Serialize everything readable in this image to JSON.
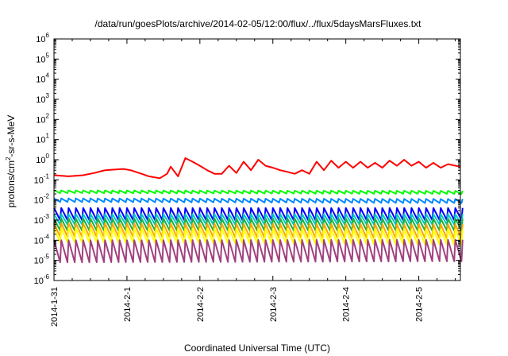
{
  "chart_data": {
    "type": "line",
    "title": "/data/run/goesPlots/archive/2014-02-05/12:00/flux/../flux/5daysMarsFluxes.txt",
    "xlabel": "Coordinated Universal Time (UTC)",
    "ylabel_parts": {
      "base": "protons/cm",
      "sup": "2",
      "rest": "-sr-s-MeV"
    },
    "y_scale": "log",
    "ylim": [
      1e-06,
      1000000.0
    ],
    "y_ticks": [
      {
        "value": 1e-06,
        "base": "10",
        "exp": "-6"
      },
      {
        "value": 1e-05,
        "base": "10",
        "exp": "-5"
      },
      {
        "value": 0.0001,
        "base": "10",
        "exp": "-4"
      },
      {
        "value": 0.001,
        "base": "10",
        "exp": "-3"
      },
      {
        "value": 0.01,
        "base": "10",
        "exp": "-2"
      },
      {
        "value": 0.1,
        "base": "10",
        "exp": "-1"
      },
      {
        "value": 1,
        "base": "10",
        "exp": "0"
      },
      {
        "value": 10.0,
        "base": "10",
        "exp": "1"
      },
      {
        "value": 100.0,
        "base": "10",
        "exp": "2"
      },
      {
        "value": 1000.0,
        "base": "10",
        "exp": "3"
      },
      {
        "value": 10000.0,
        "base": "10",
        "exp": "4"
      },
      {
        "value": 100000.0,
        "base": "10",
        "exp": "5"
      },
      {
        "value": 1000000.0,
        "base": "10",
        "exp": "6"
      }
    ],
    "x_unit": "days",
    "xlim": [
      0,
      5.57
    ],
    "x_ticks": [
      {
        "value": 0,
        "label": "2014-1-31"
      },
      {
        "value": 1,
        "label": "2014-2-1"
      },
      {
        "value": 2,
        "label": "2014-2-2"
      },
      {
        "value": 3,
        "label": "2014-2-3"
      },
      {
        "value": 4,
        "label": "2014-2-4"
      },
      {
        "value": 5,
        "label": "2014-2-5"
      }
    ],
    "grid": false,
    "legend": "none",
    "series": [
      {
        "color": "#ff0000",
        "x": [
          0,
          0.2,
          0.4,
          0.55,
          0.7,
          0.85,
          0.95,
          1.05,
          1.2,
          1.3,
          1.45,
          1.55,
          1.6,
          1.7,
          1.8,
          1.9,
          2.0,
          2.1,
          2.2,
          2.3,
          2.4,
          2.5,
          2.6,
          2.7,
          2.8,
          2.9,
          3.0,
          3.1,
          3.2,
          3.3,
          3.4,
          3.5,
          3.6,
          3.7,
          3.8,
          3.9,
          4.0,
          4.1,
          4.2,
          4.3,
          4.4,
          4.5,
          4.6,
          4.7,
          4.8,
          4.9,
          5.0,
          5.1,
          5.2,
          5.3,
          5.4,
          5.57
        ],
        "values": [
          0.17,
          0.15,
          0.17,
          0.22,
          0.3,
          0.33,
          0.35,
          0.3,
          0.2,
          0.15,
          0.12,
          0.2,
          0.45,
          0.15,
          1.2,
          0.8,
          0.5,
          0.3,
          0.2,
          0.2,
          0.5,
          0.22,
          0.8,
          0.3,
          1.0,
          0.5,
          0.4,
          0.3,
          0.25,
          0.2,
          0.3,
          0.2,
          0.8,
          0.3,
          0.9,
          0.4,
          0.8,
          0.4,
          0.8,
          0.4,
          0.7,
          0.4,
          0.9,
          0.5,
          1.0,
          0.5,
          0.8,
          0.4,
          0.7,
          0.4,
          0.6,
          0.45
        ]
      },
      {
        "color": "#00ff00",
        "base": 0.03,
        "lo": 0.022,
        "end": 0.02,
        "amp": 1.15
      },
      {
        "color": "#0088ff",
        "base": 0.012,
        "lo": 0.008,
        "end": 0.007,
        "amp": 1.3
      },
      {
        "color": "#0000ff",
        "base": 0.004,
        "lo": 0.001,
        "end": 0.001,
        "amp": 2.0
      },
      {
        "color": "#00c8c8",
        "base": 0.002,
        "lo": 0.0006,
        "end": 0.0006,
        "amp": 2.2
      },
      {
        "color": "#20b040",
        "base": 0.0012,
        "lo": 0.0003,
        "end": 0.0003,
        "amp": 2.4
      },
      {
        "color": "#ffa500",
        "base": 0.0007,
        "lo": 0.00015,
        "end": 0.00012,
        "amp": 2.5
      },
      {
        "color": "#ffff00",
        "base": 0.0004,
        "lo": 8e-05,
        "end": 6e-05,
        "amp": 2.6
      },
      {
        "color": "#a04080",
        "base": 0.0001,
        "lo": 8e-06,
        "end": 9e-06,
        "amp": 3.0
      }
    ],
    "sawtooth_period_days": 0.1
  }
}
